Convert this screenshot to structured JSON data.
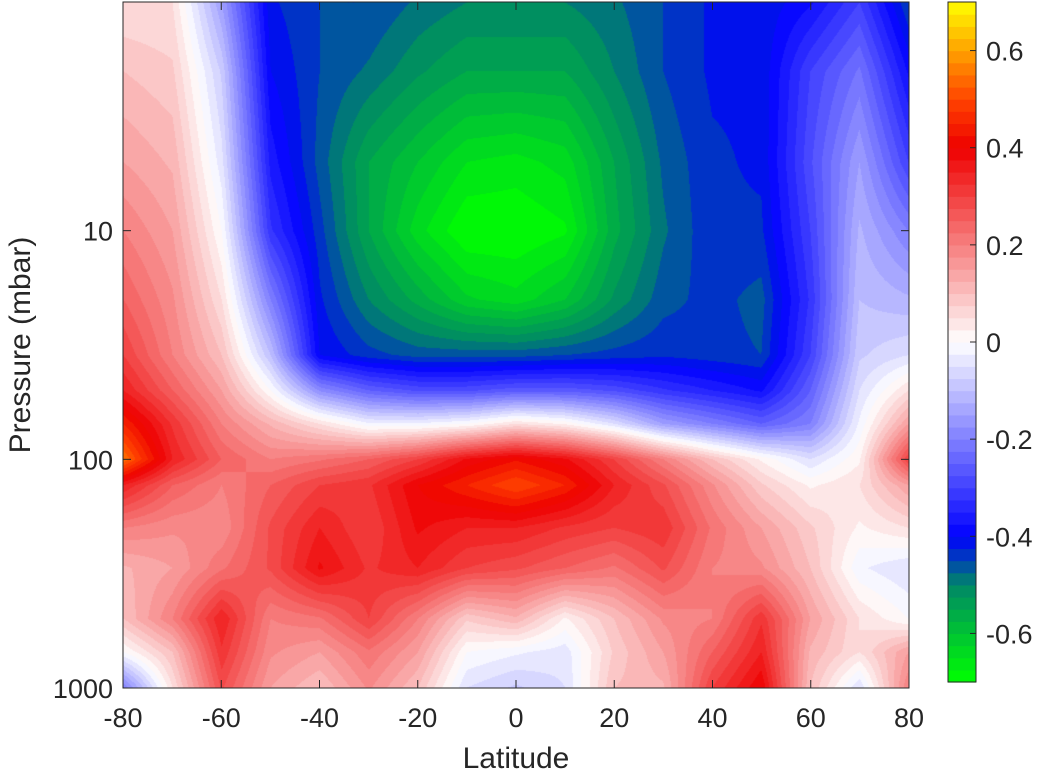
{
  "chart_data": {
    "type": "heatmap",
    "title": "",
    "xlabel": "Latitude",
    "ylabel": "Pressure (mbar)",
    "x_scale": "linear",
    "y_scale": "log",
    "y_reversed": true,
    "xlim": [
      -80,
      80
    ],
    "ylim": [
      1000,
      1
    ],
    "x_ticks": [
      -80,
      -60,
      -40,
      -20,
      0,
      20,
      40,
      60,
      80
    ],
    "x_tick_labels": [
      "-80",
      "-60",
      "-40",
      "-20",
      "0",
      "20",
      "40",
      "60",
      "80"
    ],
    "y_ticks": [
      10,
      100,
      1000
    ],
    "y_tick_labels": [
      "10",
      "100",
      "1000"
    ],
    "colorbar": {
      "clim": [
        -0.7,
        0.7
      ],
      "ticks": [
        0.6,
        0.4,
        0.2,
        0,
        -0.2,
        -0.4,
        -0.6
      ],
      "tick_labels": [
        "0.6",
        "0.4",
        "0.2",
        "0",
        "-0.2",
        "-0.4",
        "-0.6"
      ],
      "colors": {
        "-0.7": "#00ff00",
        "-0.5": "#008866",
        "-0.4": "#0000ff",
        "0": "#ffffff",
        "0.4": "#ee0000",
        "0.5": "#ff4400",
        "0.7": "#ffff00"
      }
    },
    "x": [
      -80,
      -70,
      -60,
      -50,
      -40,
      -30,
      -20,
      -10,
      0,
      10,
      20,
      30,
      40,
      50,
      60,
      70,
      80
    ],
    "y": [
      1,
      2,
      5,
      10,
      20,
      35,
      50,
      70,
      100,
      130,
      200,
      300,
      500,
      700,
      1000
    ],
    "z": [
      [
        0.05,
        0.05,
        -0.15,
        -0.42,
        -0.45,
        -0.45,
        -0.48,
        -0.5,
        -0.5,
        -0.5,
        -0.48,
        -0.45,
        -0.42,
        -0.42,
        -0.38,
        -0.3,
        -0.45
      ],
      [
        0.1,
        0.08,
        -0.08,
        -0.4,
        -0.45,
        -0.48,
        -0.52,
        -0.55,
        -0.55,
        -0.55,
        -0.5,
        -0.45,
        -0.42,
        -0.42,
        -0.3,
        -0.22,
        -0.38
      ],
      [
        0.15,
        0.12,
        -0.04,
        -0.36,
        -0.46,
        -0.55,
        -0.6,
        -0.65,
        -0.66,
        -0.64,
        -0.55,
        -0.47,
        -0.43,
        -0.42,
        -0.28,
        -0.15,
        -0.3
      ],
      [
        0.2,
        0.15,
        0.0,
        -0.32,
        -0.44,
        -0.55,
        -0.64,
        -0.7,
        -0.7,
        -0.68,
        -0.56,
        -0.48,
        -0.43,
        -0.43,
        -0.3,
        -0.12,
        -0.2
      ],
      [
        0.25,
        0.18,
        0.05,
        -0.2,
        -0.42,
        -0.5,
        -0.56,
        -0.62,
        -0.64,
        -0.6,
        -0.52,
        -0.46,
        -0.44,
        -0.46,
        -0.32,
        -0.1,
        -0.12
      ],
      [
        0.3,
        0.2,
        0.1,
        -0.1,
        -0.4,
        -0.44,
        -0.46,
        -0.46,
        -0.46,
        -0.45,
        -0.44,
        -0.43,
        -0.44,
        -0.45,
        -0.3,
        -0.08,
        -0.05
      ],
      [
        0.35,
        0.25,
        0.15,
        0.0,
        -0.18,
        -0.25,
        -0.28,
        -0.28,
        -0.26,
        -0.26,
        -0.28,
        -0.32,
        -0.35,
        -0.38,
        -0.25,
        -0.05,
        0.05
      ],
      [
        0.45,
        0.32,
        0.2,
        0.12,
        0.05,
        -0.02,
        -0.02,
        0.0,
        0.05,
        0.02,
        -0.05,
        -0.15,
        -0.2,
        -0.25,
        -0.2,
        -0.02,
        0.15
      ],
      [
        0.55,
        0.35,
        0.25,
        0.2,
        0.22,
        0.25,
        0.3,
        0.38,
        0.42,
        0.38,
        0.3,
        0.2,
        0.1,
        0.02,
        -0.05,
        0.02,
        0.3
      ],
      [
        0.35,
        0.25,
        0.2,
        0.25,
        0.3,
        0.32,
        0.4,
        0.45,
        0.5,
        0.45,
        0.35,
        0.28,
        0.18,
        0.08,
        0.02,
        0.05,
        0.15
      ],
      [
        0.2,
        0.18,
        0.18,
        0.28,
        0.35,
        0.3,
        0.38,
        0.35,
        0.35,
        0.32,
        0.3,
        0.32,
        0.22,
        0.15,
        0.08,
        0.02,
        0.05
      ],
      [
        0.12,
        0.15,
        0.22,
        0.28,
        0.38,
        0.32,
        0.35,
        0.3,
        0.28,
        0.25,
        0.22,
        0.28,
        0.2,
        0.18,
        0.1,
        -0.02,
        -0.05
      ],
      [
        0.1,
        0.2,
        0.35,
        0.2,
        0.22,
        0.3,
        0.2,
        0.08,
        0.12,
        0.02,
        0.1,
        0.18,
        0.2,
        0.32,
        0.15,
        0.05,
        0.0
      ],
      [
        0.0,
        0.1,
        0.32,
        0.18,
        0.15,
        0.22,
        0.15,
        0.0,
        -0.02,
        -0.04,
        0.08,
        0.15,
        0.25,
        0.35,
        0.12,
        0.05,
        0.15
      ],
      [
        -0.2,
        0.05,
        0.28,
        0.15,
        0.1,
        0.18,
        0.1,
        -0.05,
        -0.08,
        -0.05,
        0.1,
        0.12,
        0.3,
        0.4,
        0.1,
        -0.05,
        0.2
      ]
    ]
  }
}
